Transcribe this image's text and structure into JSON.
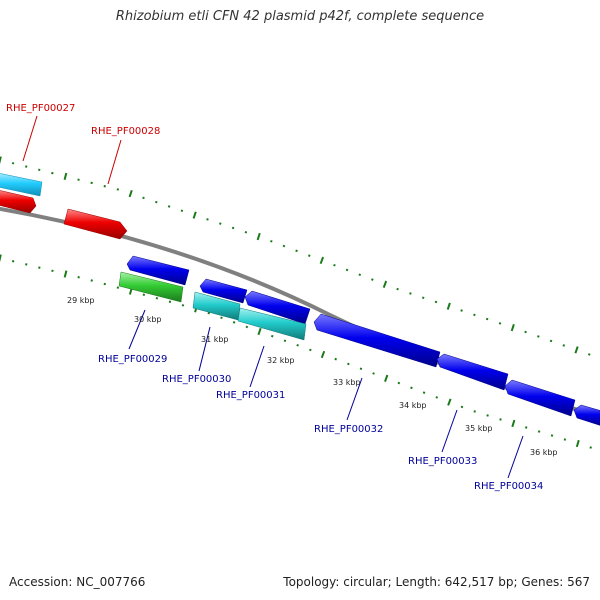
{
  "title": "Rhizobium etli CFN 42 plasmid p42f, complete sequence",
  "accession": "Accession: NC_007766",
  "summary": "Topology: circular; Length: 642,517 bp; Genes: 567",
  "colors": {
    "backbone": "#808080",
    "tick": "#1a7a1a",
    "forward_label": "#cc0000",
    "reverse_label": "#000099",
    "red": "#ee0000",
    "sky": "#22ccff",
    "blue": "#0000ee",
    "green": "#33cc33",
    "teal": "#22cccc"
  },
  "scale_labels": [
    "29 kbp",
    "30 kbp",
    "31 kbp",
    "32 kbp",
    "33 kbp",
    "34 kbp",
    "35 kbp",
    "36 kbp"
  ],
  "genes": [
    {
      "label": "RHE_PF00027",
      "strand": "forward",
      "color": "sky"
    },
    {
      "label": "RHE_PF00028",
      "strand": "forward",
      "color": "red"
    },
    {
      "label": "RHE_PF00029",
      "strand": "reverse",
      "color": "green"
    },
    {
      "label": "RHE_PF00030",
      "strand": "reverse",
      "color": "teal"
    },
    {
      "label": "RHE_PF00031",
      "strand": "reverse",
      "color": "teal"
    },
    {
      "label": "RHE_PF00032",
      "strand": "reverse",
      "color": "blue"
    },
    {
      "label": "RHE_PF00033",
      "strand": "reverse",
      "color": "blue"
    },
    {
      "label": "RHE_PF00034",
      "strand": "reverse",
      "color": "blue"
    }
  ]
}
